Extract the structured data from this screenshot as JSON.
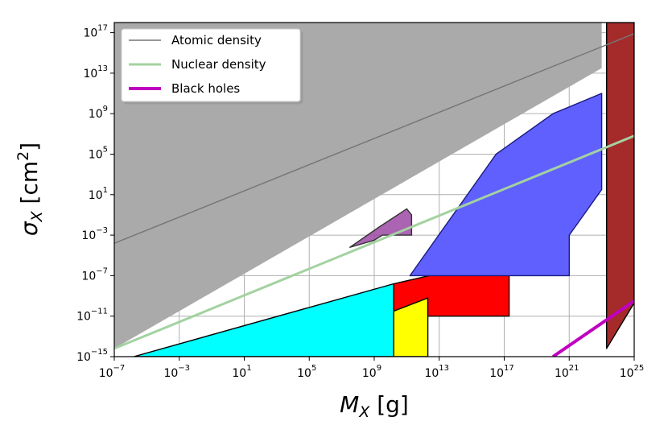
{
  "chart_data": {
    "type": "area",
    "xlabel": {
      "symbol": "M",
      "sub": "X",
      "unit": " [g]"
    },
    "ylabel": {
      "symbol": "σ",
      "sub": "X",
      "unit": " [cm",
      "unit_sup": "2",
      "unit_end": "]"
    },
    "x_scale": "log",
    "y_scale": "log",
    "xlim_exp": [
      -7,
      25
    ],
    "ylim_exp": [
      -15,
      18
    ],
    "x_ticks": [
      {
        "base": "10",
        "exp": "−7",
        "v": -7
      },
      {
        "base": "10",
        "exp": "−3",
        "v": -3
      },
      {
        "base": "10",
        "exp": "1",
        "v": 1
      },
      {
        "base": "10",
        "exp": "5",
        "v": 5
      },
      {
        "base": "10",
        "exp": "9",
        "v": 9
      },
      {
        "base": "10",
        "exp": "13",
        "v": 13
      },
      {
        "base": "10",
        "exp": "17",
        "v": 17
      },
      {
        "base": "10",
        "exp": "21",
        "v": 21
      },
      {
        "base": "10",
        "exp": "25",
        "v": 25
      }
    ],
    "y_ticks": [
      {
        "base": "10",
        "exp": "17",
        "v": 17
      },
      {
        "base": "10",
        "exp": "13",
        "v": 13
      },
      {
        "base": "10",
        "exp": "9",
        "v": 9
      },
      {
        "base": "10",
        "exp": "5",
        "v": 5
      },
      {
        "base": "10",
        "exp": "1",
        "v": 1
      },
      {
        "base": "10",
        "exp": "−3",
        "v": -3
      },
      {
        "base": "10",
        "exp": "−7",
        "v": -7
      },
      {
        "base": "10",
        "exp": "−11",
        "v": -11
      },
      {
        "base": "10",
        "exp": "−15",
        "v": -15
      }
    ],
    "grid": true,
    "legend_position": "top-left",
    "lines": [
      {
        "name": "Atomic density",
        "color": "#777777",
        "width": 1.5,
        "points": [
          [
            -7,
            -3.8
          ],
          [
            25,
            16.9
          ]
        ]
      },
      {
        "name": "Nuclear density",
        "color": "#a3d2a0",
        "width": 3,
        "points": [
          [
            -7,
            -14.2
          ],
          [
            25,
            6.8
          ]
        ]
      },
      {
        "name": "Black holes",
        "color": "#c000c0",
        "width": 4,
        "points": [
          [
            20,
            -15
          ],
          [
            25,
            -9.5
          ]
        ]
      }
    ],
    "regions": [
      {
        "color": "#aaaaaa",
        "stroke": "none",
        "points": [
          [
            -7,
            -14.2
          ],
          [
            -7,
            18
          ],
          [
            23,
            18
          ],
          [
            23,
            13.5
          ],
          [
            -7,
            -14.2
          ]
        ]
      },
      {
        "color": "#00ffff",
        "stroke": "#000000",
        "points": [
          [
            -5.8,
            -15
          ],
          [
            10.2,
            -15
          ],
          [
            10.2,
            -7.8
          ],
          [
            -5.8,
            -15
          ]
        ]
      },
      {
        "color": "#ffff00",
        "stroke": "#000000",
        "points": [
          [
            10.2,
            -15
          ],
          [
            12.3,
            -15
          ],
          [
            12.3,
            -9.2
          ],
          [
            10.2,
            -10.5
          ]
        ]
      },
      {
        "color": "#ff0000",
        "stroke": "#000000",
        "points": [
          [
            10.2,
            -7.8
          ],
          [
            17.3,
            -5.2
          ],
          [
            17.3,
            -11
          ],
          [
            12.3,
            -11
          ],
          [
            12.3,
            -9.2
          ],
          [
            10.2,
            -10.5
          ]
        ]
      },
      {
        "color": "#9b49a3",
        "stroke": "#333333",
        "opacity": 0.85,
        "points": [
          [
            7.5,
            -4.2
          ],
          [
            9.3,
            -2.2
          ],
          [
            11,
            -0.4
          ],
          [
            11.3,
            -1
          ],
          [
            11.3,
            -3
          ],
          [
            10.5,
            -3
          ],
          [
            9.5,
            -3
          ],
          [
            9,
            -3.5
          ],
          [
            7.5,
            -4.2
          ]
        ]
      },
      {
        "color": "#6060ff",
        "stroke": "#1a1a80",
        "points": [
          [
            11.2,
            -7
          ],
          [
            21,
            -7
          ],
          [
            21,
            -3
          ],
          [
            23,
            1.5
          ],
          [
            23,
            11
          ],
          [
            20,
            9
          ],
          [
            16.5,
            5
          ],
          [
            11.2,
            -7
          ]
        ]
      },
      {
        "color": "#a52a2a",
        "stroke": "#000000",
        "points": [
          [
            23.3,
            18
          ],
          [
            25,
            18
          ],
          [
            25,
            -9.7
          ],
          [
            23.3,
            -14.2
          ]
        ]
      }
    ]
  }
}
